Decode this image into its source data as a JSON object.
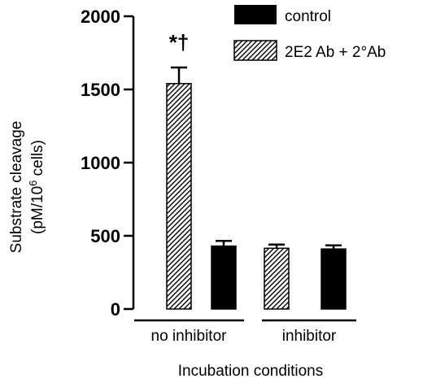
{
  "chart_data": {
    "type": "bar",
    "categories": [
      "no inhibitor",
      "inhibitor"
    ],
    "series": [
      {
        "name": "control",
        "values": [
          430,
          410
        ],
        "errors": [
          35,
          25
        ],
        "color": "#000000",
        "pattern": "solid"
      },
      {
        "name": "2E2 Ab + 2°Ab",
        "values": [
          1540,
          415
        ],
        "errors": [
          110,
          25
        ],
        "color": "#000000",
        "pattern": "hatched"
      }
    ],
    "bar_order": [
      {
        "category": 0,
        "series": 1
      },
      {
        "category": 0,
        "series": 0
      },
      {
        "category": 1,
        "series": 1
      },
      {
        "category": 1,
        "series": 0
      }
    ],
    "ylabel_line1": "Substrate cleavage",
    "ylabel_line2_prefix": "(pM/10",
    "ylabel_line2_sup": "6",
    "ylabel_line2_suffix": " cells)",
    "xlabel": "Incubation conditions",
    "ylim": [
      0,
      2000
    ],
    "yticks": [
      "0",
      "500",
      "1000",
      "1500",
      "2000"
    ],
    "ytick_values": [
      0,
      500,
      1000,
      1500,
      2000
    ],
    "annotation": "*†",
    "annotation_bar": 0,
    "legend_position": "top-right",
    "grid": false
  }
}
